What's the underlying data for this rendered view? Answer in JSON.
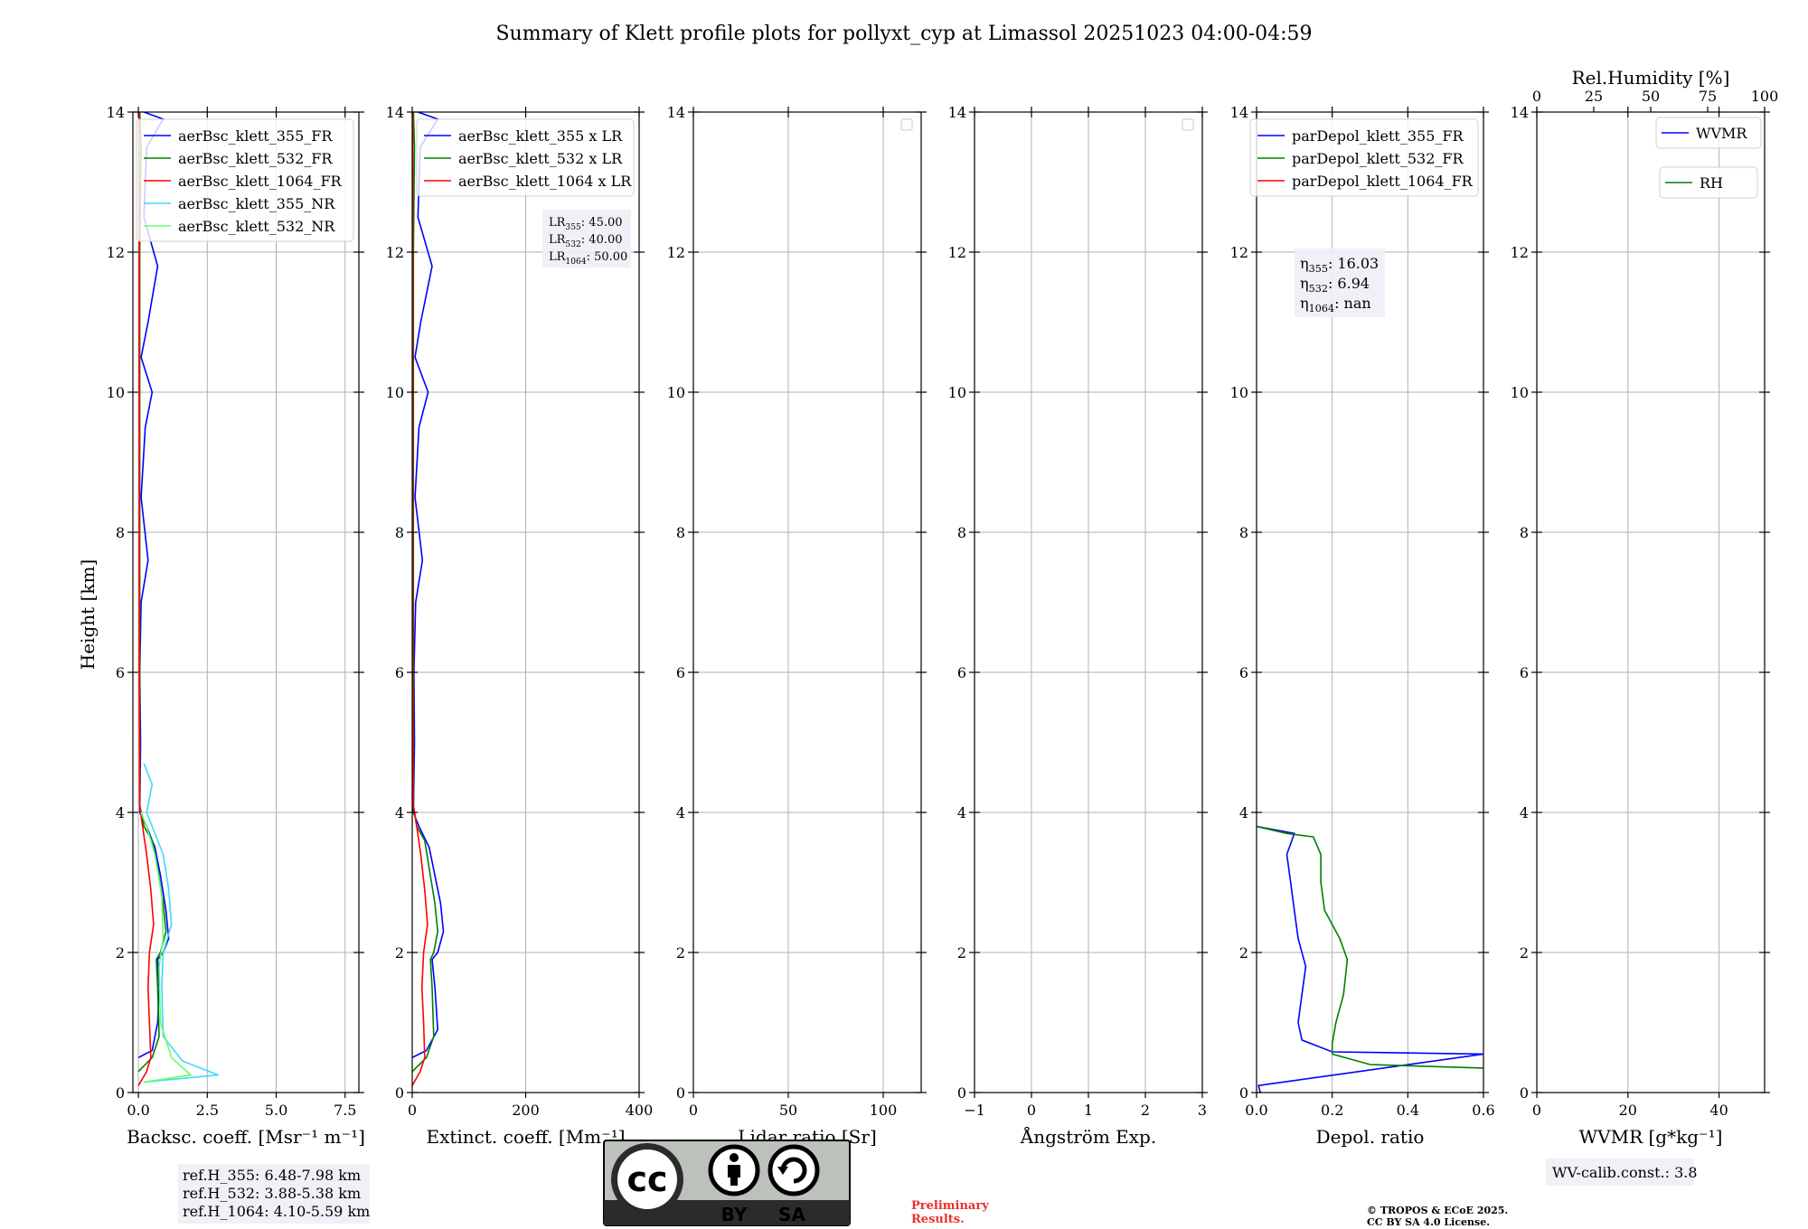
{
  "title": "Summary of Klett profile plots for pollyxt_cyp at Limassol 20251023 04:00-04:59",
  "y_label": "Height [km]",
  "chart_data": [
    {
      "id": "bsc",
      "type": "line",
      "xlabel": "Backsc. coeff. [Msr⁻¹ m⁻¹]",
      "xlim": [
        -0.2,
        8
      ],
      "xticks": [
        0,
        2.5,
        5,
        7.5
      ],
      "xtick_labels": [
        "0.0",
        "2.5",
        "5.0",
        "7.5"
      ],
      "ylim": [
        0,
        14
      ],
      "yticks": [
        0,
        2,
        4,
        6,
        8,
        10,
        12,
        14
      ],
      "grid": true,
      "legend_position": "top-right",
      "series": [
        {
          "name": "aerBsc_klett_355_FR",
          "color": "#0000ff",
          "points": [
            [
              0.0,
              0.5
            ],
            [
              0.5,
              0.6
            ],
            [
              0.7,
              1.0
            ],
            [
              0.75,
              1.5
            ],
            [
              0.7,
              1.9
            ],
            [
              0.9,
              2.0
            ],
            [
              1.1,
              2.2
            ],
            [
              1.0,
              2.6
            ],
            [
              0.8,
              3.1
            ],
            [
              0.6,
              3.5
            ],
            [
              0.3,
              3.8
            ],
            [
              0.05,
              4.0
            ],
            [
              0.08,
              5.0
            ],
            [
              0.05,
              6.0
            ],
            [
              0.1,
              7.0
            ],
            [
              0.35,
              7.6
            ],
            [
              0.1,
              8.5
            ],
            [
              0.25,
              9.5
            ],
            [
              0.5,
              10.0
            ],
            [
              0.1,
              10.5
            ],
            [
              0.35,
              11.0
            ],
            [
              0.7,
              11.8
            ],
            [
              0.2,
              12.5
            ],
            [
              0.3,
              13.5
            ],
            [
              0.9,
              13.9
            ],
            [
              0.2,
              14.0
            ]
          ]
        },
        {
          "name": "aerBsc_klett_532_FR",
          "color": "#008000",
          "points": [
            [
              0.0,
              0.3
            ],
            [
              0.5,
              0.5
            ],
            [
              0.75,
              0.8
            ],
            [
              0.7,
              1.5
            ],
            [
              0.65,
              1.9
            ],
            [
              0.8,
              2.0
            ],
            [
              1.0,
              2.3
            ],
            [
              0.9,
              2.7
            ],
            [
              0.7,
              3.2
            ],
            [
              0.5,
              3.6
            ],
            [
              0.2,
              3.8
            ],
            [
              0.05,
              4.1
            ],
            [
              0.05,
              6.0
            ],
            [
              0.05,
              8.0
            ],
            [
              0.05,
              10.0
            ],
            [
              0.05,
              12.0
            ],
            [
              0.1,
              13.5
            ],
            [
              0.05,
              14.0
            ]
          ]
        },
        {
          "name": "aerBsc_klett_1064_FR",
          "color": "#ff0000",
          "points": [
            [
              0.0,
              0.1
            ],
            [
              0.3,
              0.3
            ],
            [
              0.45,
              0.5
            ],
            [
              0.4,
              1.0
            ],
            [
              0.35,
              1.5
            ],
            [
              0.4,
              2.0
            ],
            [
              0.55,
              2.4
            ],
            [
              0.45,
              2.9
            ],
            [
              0.3,
              3.4
            ],
            [
              0.15,
              3.8
            ],
            [
              0.05,
              4.1
            ],
            [
              0.03,
              6.0
            ],
            [
              0.03,
              8.0
            ],
            [
              0.03,
              10.0
            ],
            [
              0.03,
              12.0
            ],
            [
              0.03,
              14.0
            ]
          ]
        },
        {
          "name": "aerBsc_klett_355_NR",
          "color": "#40d9ff",
          "points": [
            [
              0.2,
              0.15
            ],
            [
              2.9,
              0.25
            ],
            [
              1.6,
              0.45
            ],
            [
              0.9,
              0.8
            ],
            [
              0.85,
              1.5
            ],
            [
              0.9,
              2.0
            ],
            [
              1.2,
              2.4
            ],
            [
              1.1,
              2.9
            ],
            [
              0.9,
              3.4
            ],
            [
              0.5,
              3.8
            ],
            [
              0.3,
              4.0
            ],
            [
              0.5,
              4.4
            ],
            [
              0.2,
              4.7
            ]
          ]
        },
        {
          "name": "aerBsc_klett_532_NR",
          "color": "#66ff66",
          "points": [
            [
              0.2,
              0.15
            ],
            [
              1.9,
              0.25
            ],
            [
              1.2,
              0.5
            ],
            [
              0.8,
              1.0
            ],
            [
              0.75,
              1.8
            ],
            [
              0.9,
              2.2
            ],
            [
              0.85,
              2.8
            ],
            [
              0.6,
              3.4
            ],
            [
              0.3,
              3.8
            ],
            [
              0.1,
              4.0
            ]
          ]
        }
      ],
      "annotation": [
        "ref.H_355: 6.48-7.98 km",
        "ref.H_532: 3.88-5.38 km",
        "ref.H_1064: 4.10-5.59 km"
      ]
    },
    {
      "id": "ext",
      "type": "line",
      "xlabel": "Extinct. coeff. [Mm⁻¹]",
      "xlim": [
        0,
        400
      ],
      "xticks": [
        0,
        200,
        400
      ],
      "xtick_labels": [
        "0",
        "200",
        "400"
      ],
      "ylim": [
        0,
        14
      ],
      "yticks": [
        0,
        2,
        4,
        6,
        8,
        10,
        12,
        14
      ],
      "grid": true,
      "legend_position": "top-right",
      "series": [
        {
          "name": "aerBsc_klett_355 x LR",
          "color": "#0000ff",
          "points": [
            [
              0,
              0.5
            ],
            [
              25,
              0.6
            ],
            [
              45,
              0.9
            ],
            [
              40,
              1.5
            ],
            [
              35,
              1.9
            ],
            [
              45,
              2.0
            ],
            [
              55,
              2.3
            ],
            [
              50,
              2.7
            ],
            [
              40,
              3.1
            ],
            [
              30,
              3.5
            ],
            [
              12,
              3.8
            ],
            [
              2,
              4.0
            ],
            [
              4,
              5.0
            ],
            [
              3,
              6.0
            ],
            [
              6,
              7.0
            ],
            [
              18,
              7.6
            ],
            [
              5,
              8.5
            ],
            [
              12,
              9.5
            ],
            [
              28,
              10.0
            ],
            [
              5,
              10.5
            ],
            [
              15,
              11.0
            ],
            [
              35,
              11.8
            ],
            [
              10,
              12.5
            ],
            [
              14,
              13.5
            ],
            [
              45,
              13.9
            ],
            [
              10,
              14.0
            ]
          ]
        },
        {
          "name": "aerBsc_klett_532 x LR",
          "color": "#008000",
          "points": [
            [
              0,
              0.3
            ],
            [
              25,
              0.5
            ],
            [
              38,
              0.8
            ],
            [
              35,
              1.5
            ],
            [
              32,
              1.9
            ],
            [
              38,
              2.0
            ],
            [
              45,
              2.3
            ],
            [
              40,
              2.7
            ],
            [
              30,
              3.2
            ],
            [
              22,
              3.6
            ],
            [
              8,
              3.8
            ],
            [
              2,
              4.1
            ],
            [
              2,
              6.0
            ],
            [
              2,
              8.0
            ],
            [
              2,
              10.0
            ],
            [
              2,
              12.0
            ],
            [
              4,
              13.5
            ],
            [
              2,
              14.0
            ]
          ]
        },
        {
          "name": "aerBsc_klett_1064 x LR",
          "color": "#ff0000",
          "points": [
            [
              0,
              0.1
            ],
            [
              14,
              0.3
            ],
            [
              22,
              0.5
            ],
            [
              20,
              1.0
            ],
            [
              17,
              1.5
            ],
            [
              20,
              2.0
            ],
            [
              27,
              2.4
            ],
            [
              22,
              2.9
            ],
            [
              15,
              3.4
            ],
            [
              8,
              3.8
            ],
            [
              2,
              4.1
            ],
            [
              1,
              6.0
            ],
            [
              1,
              8.0
            ],
            [
              1,
              10.0
            ],
            [
              1,
              12.0
            ],
            [
              1,
              14.0
            ]
          ]
        }
      ],
      "annotation": [
        "LR355: 45.00",
        "LR532: 40.00",
        "LR1064: 50.00"
      ]
    },
    {
      "id": "lr",
      "type": "line",
      "xlabel": "Lidar ratio [Sr]",
      "xlim": [
        0,
        120
      ],
      "xticks": [
        0,
        50,
        100
      ],
      "xtick_labels": [
        "0",
        "50",
        "100"
      ],
      "ylim": [
        0,
        14
      ],
      "yticks": [
        0,
        2,
        4,
        6,
        8,
        10,
        12,
        14
      ],
      "grid": true,
      "series": []
    },
    {
      "id": "ae",
      "type": "line",
      "xlabel": "Ångström Exp.",
      "xlim": [
        -1,
        3
      ],
      "xticks": [
        -1,
        0,
        1,
        2,
        3
      ],
      "xtick_labels": [
        "−1",
        "0",
        "1",
        "2",
        "3"
      ],
      "ylim": [
        0,
        14
      ],
      "yticks": [
        0,
        2,
        4,
        6,
        8,
        10,
        12,
        14
      ],
      "grid": true,
      "series": []
    },
    {
      "id": "depol",
      "type": "line",
      "xlabel": "Depol. ratio",
      "xlim": [
        0,
        0.6
      ],
      "xticks": [
        0,
        0.2,
        0.4,
        0.6
      ],
      "xtick_labels": [
        "0.0",
        "0.2",
        "0.4",
        "0.6"
      ],
      "ylim": [
        0,
        14
      ],
      "yticks": [
        0,
        2,
        4,
        6,
        8,
        10,
        12,
        14
      ],
      "grid": true,
      "legend_position": "top-right",
      "series": [
        {
          "name": "parDepol_klett_355_FR",
          "color": "#0000ff",
          "points": [
            [
              0.01,
              0.0
            ],
            [
              0.005,
              0.1
            ],
            [
              0.6,
              0.55
            ],
            [
              0.2,
              0.58
            ],
            [
              0.12,
              0.75
            ],
            [
              0.11,
              1.0
            ],
            [
              0.12,
              1.4
            ],
            [
              0.13,
              1.8
            ],
            [
              0.11,
              2.2
            ],
            [
              0.1,
              2.6
            ],
            [
              0.09,
              3.0
            ],
            [
              0.08,
              3.4
            ],
            [
              0.1,
              3.7
            ],
            [
              0.0,
              3.8
            ]
          ]
        },
        {
          "name": "parDepol_klett_532_FR",
          "color": "#008000",
          "points": [
            [
              0.6,
              0.35
            ],
            [
              0.3,
              0.4
            ],
            [
              0.2,
              0.55
            ],
            [
              0.2,
              0.7
            ],
            [
              0.21,
              1.0
            ],
            [
              0.23,
              1.4
            ],
            [
              0.24,
              1.9
            ],
            [
              0.22,
              2.2
            ],
            [
              0.18,
              2.6
            ],
            [
              0.17,
              3.0
            ],
            [
              0.17,
              3.4
            ],
            [
              0.15,
              3.65
            ],
            [
              0.08,
              3.7
            ],
            [
              0.0,
              3.8
            ]
          ]
        },
        {
          "name": "parDepol_klett_1064_FR",
          "color": "#ff0000",
          "points": []
        }
      ],
      "annotation": [
        "η355: 16.03",
        "η532: 6.94",
        "η1064: nan"
      ]
    },
    {
      "id": "wv",
      "type": "line",
      "xlabel": "WVMR [g*kg⁻¹]",
      "xlim": [
        0,
        50
      ],
      "xticks": [
        0,
        20,
        40
      ],
      "xtick_labels": [
        "0",
        "20",
        "40"
      ],
      "top_xlabel": "Rel.Humidity [%]",
      "top_xticks": [
        0,
        25,
        50,
        75,
        100
      ],
      "top_xtick_labels": [
        "0",
        "25",
        "50",
        "75",
        "100"
      ],
      "ylim": [
        0,
        14
      ],
      "yticks": [
        0,
        2,
        4,
        6,
        8,
        10,
        12,
        14
      ],
      "grid": true,
      "series": [
        {
          "name": "WVMR",
          "color": "#0000ff",
          "points": []
        },
        {
          "name": "RH",
          "color": "#008000",
          "points": []
        }
      ],
      "annotation": [
        "WV-calib.const.: 3.8"
      ]
    }
  ],
  "license_badge": {
    "by": "BY",
    "sa": "SA",
    "cc": "cc"
  },
  "preliminary": [
    "Preliminary",
    "Results."
  ],
  "copyright": [
    "© TROPOS & ECoE 2025.",
    "CC BY SA 4.0 License."
  ],
  "colors": {
    "blue": "#0000ff",
    "green": "#008000",
    "red": "#ff0000",
    "cyan": "#40d9ff",
    "lightgreen": "#66ff66",
    "preliminary": "#e8312f"
  }
}
